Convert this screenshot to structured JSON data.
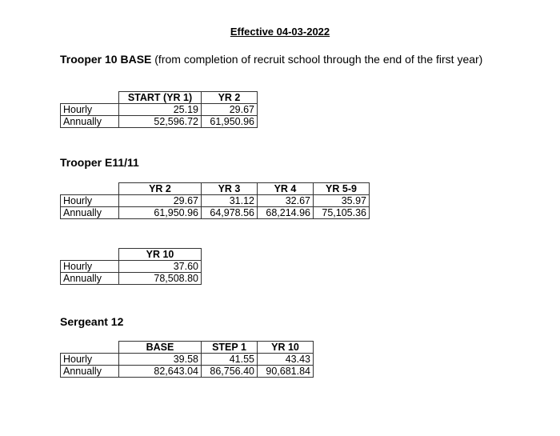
{
  "title": "Effective 04-03-2022",
  "sections": [
    {
      "heading": "Trooper 10 BASE",
      "subheading": "(from completion of recruit school through the end of the first year)"
    },
    {
      "heading": "Trooper E11/11",
      "subheading": ""
    },
    {
      "heading": "Sergeant 12",
      "subheading": ""
    }
  ],
  "tables": [
    {
      "columns": [
        "START (YR 1)",
        "YR 2"
      ],
      "rows": [
        {
          "label": "Hourly",
          "values": [
            "25.19",
            "29.67"
          ]
        },
        {
          "label": "Annually",
          "values": [
            "52,596.72",
            "61,950.96"
          ]
        }
      ]
    },
    {
      "columns": [
        "YR 2",
        "YR 3",
        "YR 4",
        "YR 5-9"
      ],
      "rows": [
        {
          "label": "Hourly",
          "values": [
            "29.67",
            "31.12",
            "32.67",
            "35.97"
          ]
        },
        {
          "label": "Annually",
          "values": [
            "61,950.96",
            "64,978.56",
            "68,214.96",
            "75,105.36"
          ]
        }
      ]
    },
    {
      "columns": [
        "YR 10"
      ],
      "rows": [
        {
          "label": "Hourly",
          "values": [
            "37.60"
          ]
        },
        {
          "label": "Annually",
          "values": [
            "78,508.80"
          ]
        }
      ]
    },
    {
      "columns": [
        "BASE",
        "STEP 1",
        "YR 10"
      ],
      "rows": [
        {
          "label": "Hourly",
          "values": [
            "39.58",
            "41.55",
            "43.43"
          ]
        },
        {
          "label": "Annually",
          "values": [
            "82,643.04",
            "86,756.40",
            "90,681.84"
          ]
        }
      ]
    }
  ]
}
